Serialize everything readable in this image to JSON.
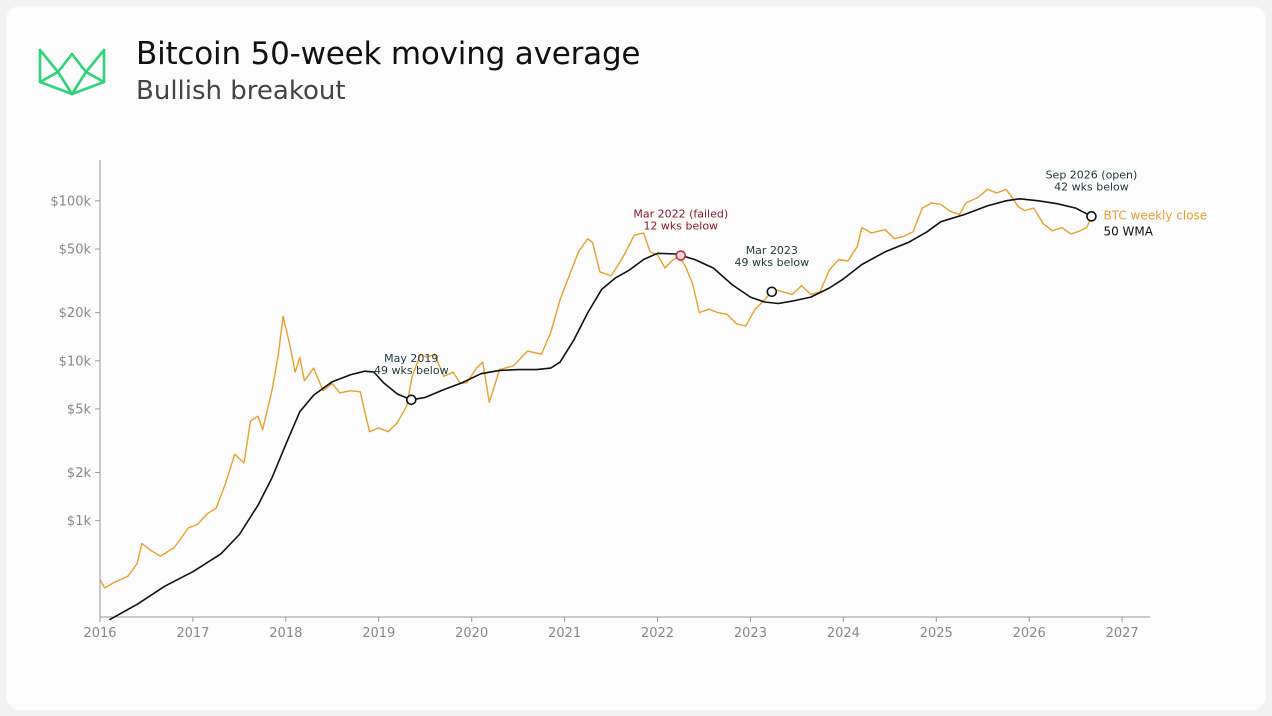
{
  "header": {
    "title": "Bitcoin 50-week moving average",
    "subtitle": "Bullish breakout"
  },
  "colors": {
    "btc": "#E8A02F",
    "wma": "#111111",
    "logo": "#2ED47A",
    "failed_marker": "#C0304A",
    "failed_text": "#8B1A2C",
    "note_text": "#1F3A3A",
    "axis": "#999999",
    "tick_text": "#888888"
  },
  "chart_data": {
    "type": "line",
    "yscale": "log",
    "xlim": [
      2016,
      2027.3
    ],
    "ylim": [
      250,
      180000
    ],
    "grid": false,
    "legend": "right-end",
    "x_ticks": [
      2016,
      2017,
      2018,
      2019,
      2020,
      2021,
      2022,
      2023,
      2024,
      2025,
      2026,
      2027
    ],
    "x_tick_labels": [
      "2016",
      "2017",
      "2018",
      "2019",
      "2020",
      "2021",
      "2022",
      "2023",
      "2024",
      "2025",
      "2026",
      "2027"
    ],
    "y_ticks": [
      1000,
      2000,
      5000,
      10000,
      20000,
      50000,
      100000
    ],
    "y_tick_labels": [
      "$1k",
      "$2k",
      "$5k",
      "$10k",
      "$20k",
      "$50k",
      "$100k"
    ],
    "series": [
      {
        "name": "BTC weekly close",
        "points": [
          [
            2016.0,
            430
          ],
          [
            2016.05,
            380
          ],
          [
            2016.15,
            410
          ],
          [
            2016.3,
            450
          ],
          [
            2016.4,
            540
          ],
          [
            2016.45,
            720
          ],
          [
            2016.55,
            650
          ],
          [
            2016.65,
            600
          ],
          [
            2016.8,
            680
          ],
          [
            2016.95,
            900
          ],
          [
            2017.05,
            950
          ],
          [
            2017.15,
            1100
          ],
          [
            2017.25,
            1200
          ],
          [
            2017.35,
            1700
          ],
          [
            2017.45,
            2600
          ],
          [
            2017.55,
            2300
          ],
          [
            2017.62,
            4200
          ],
          [
            2017.7,
            4500
          ],
          [
            2017.75,
            3700
          ],
          [
            2017.85,
            6500
          ],
          [
            2017.92,
            11000
          ],
          [
            2017.97,
            19000
          ],
          [
            2018.05,
            12000
          ],
          [
            2018.1,
            8500
          ],
          [
            2018.15,
            10500
          ],
          [
            2018.2,
            7500
          ],
          [
            2018.3,
            9000
          ],
          [
            2018.4,
            6500
          ],
          [
            2018.5,
            7200
          ],
          [
            2018.58,
            6300
          ],
          [
            2018.7,
            6500
          ],
          [
            2018.8,
            6400
          ],
          [
            2018.9,
            3600
          ],
          [
            2019.0,
            3800
          ],
          [
            2019.1,
            3600
          ],
          [
            2019.2,
            4100
          ],
          [
            2019.3,
            5200
          ],
          [
            2019.36,
            8000
          ],
          [
            2019.45,
            11000
          ],
          [
            2019.52,
            10500
          ],
          [
            2019.6,
            11000
          ],
          [
            2019.7,
            8000
          ],
          [
            2019.8,
            8500
          ],
          [
            2019.88,
            7200
          ],
          [
            2019.95,
            7300
          ],
          [
            2020.05,
            9000
          ],
          [
            2020.12,
            9800
          ],
          [
            2020.19,
            5500
          ],
          [
            2020.3,
            8800
          ],
          [
            2020.45,
            9300
          ],
          [
            2020.6,
            11500
          ],
          [
            2020.75,
            11000
          ],
          [
            2020.85,
            15000
          ],
          [
            2020.95,
            24000
          ],
          [
            2021.05,
            34000
          ],
          [
            2021.15,
            48000
          ],
          [
            2021.25,
            58000
          ],
          [
            2021.3,
            55000
          ],
          [
            2021.38,
            36000
          ],
          [
            2021.5,
            34000
          ],
          [
            2021.58,
            40000
          ],
          [
            2021.65,
            47000
          ],
          [
            2021.75,
            61000
          ],
          [
            2021.85,
            63000
          ],
          [
            2021.92,
            48000
          ],
          [
            2022.0,
            46000
          ],
          [
            2022.08,
            38000
          ],
          [
            2022.15,
            42000
          ],
          [
            2022.23,
            45000
          ],
          [
            2022.3,
            39000
          ],
          [
            2022.38,
            30000
          ],
          [
            2022.45,
            20000
          ],
          [
            2022.55,
            21000
          ],
          [
            2022.65,
            20000
          ],
          [
            2022.75,
            19500
          ],
          [
            2022.85,
            17000
          ],
          [
            2022.95,
            16500
          ],
          [
            2023.05,
            21000
          ],
          [
            2023.15,
            24000
          ],
          [
            2023.25,
            28000
          ],
          [
            2023.35,
            27000
          ],
          [
            2023.45,
            26000
          ],
          [
            2023.55,
            29500
          ],
          [
            2023.65,
            26000
          ],
          [
            2023.75,
            27000
          ],
          [
            2023.85,
            37000
          ],
          [
            2023.95,
            43000
          ],
          [
            2024.05,
            42000
          ],
          [
            2024.15,
            52000
          ],
          [
            2024.2,
            68000
          ],
          [
            2024.3,
            63000
          ],
          [
            2024.45,
            66000
          ],
          [
            2024.55,
            58000
          ],
          [
            2024.65,
            60000
          ],
          [
            2024.75,
            64000
          ],
          [
            2024.85,
            90000
          ],
          [
            2024.95,
            97000
          ],
          [
            2025.05,
            95000
          ],
          [
            2025.15,
            86000
          ],
          [
            2025.25,
            82000
          ],
          [
            2025.32,
            97000
          ],
          [
            2025.45,
            105000
          ],
          [
            2025.55,
            118000
          ],
          [
            2025.65,
            112000
          ],
          [
            2025.75,
            118000
          ],
          [
            2025.82,
            104000
          ],
          [
            2025.88,
            92000
          ],
          [
            2025.95,
            87000
          ],
          [
            2026.05,
            90000
          ],
          [
            2026.15,
            72000
          ],
          [
            2026.25,
            65000
          ],
          [
            2026.35,
            68000
          ],
          [
            2026.45,
            62000
          ],
          [
            2026.55,
            65000
          ],
          [
            2026.62,
            68000
          ],
          [
            2026.67,
            80000
          ]
        ]
      },
      {
        "name": "50 WMA",
        "points": [
          [
            2016.1,
            240
          ],
          [
            2016.4,
            300
          ],
          [
            2016.7,
            390
          ],
          [
            2017.0,
            480
          ],
          [
            2017.3,
            620
          ],
          [
            2017.5,
            820
          ],
          [
            2017.7,
            1250
          ],
          [
            2017.85,
            1850
          ],
          [
            2018.0,
            3000
          ],
          [
            2018.15,
            4800
          ],
          [
            2018.3,
            6100
          ],
          [
            2018.5,
            7400
          ],
          [
            2018.7,
            8200
          ],
          [
            2018.85,
            8600
          ],
          [
            2018.95,
            8500
          ],
          [
            2019.05,
            7300
          ],
          [
            2019.2,
            6200
          ],
          [
            2019.35,
            5700
          ],
          [
            2019.5,
            5900
          ],
          [
            2019.7,
            6600
          ],
          [
            2019.9,
            7300
          ],
          [
            2020.1,
            8300
          ],
          [
            2020.3,
            8700
          ],
          [
            2020.5,
            8800
          ],
          [
            2020.7,
            8800
          ],
          [
            2020.85,
            9000
          ],
          [
            2020.95,
            9800
          ],
          [
            2021.1,
            13500
          ],
          [
            2021.25,
            20000
          ],
          [
            2021.4,
            28000
          ],
          [
            2021.55,
            33000
          ],
          [
            2021.7,
            37000
          ],
          [
            2021.85,
            43000
          ],
          [
            2022.0,
            47000
          ],
          [
            2022.2,
            46500
          ],
          [
            2022.4,
            43000
          ],
          [
            2022.6,
            38000
          ],
          [
            2022.8,
            30000
          ],
          [
            2023.0,
            25000
          ],
          [
            2023.15,
            23300
          ],
          [
            2023.3,
            22800
          ],
          [
            2023.45,
            23600
          ],
          [
            2023.65,
            25000
          ],
          [
            2023.85,
            28500
          ],
          [
            2024.0,
            32500
          ],
          [
            2024.2,
            40000
          ],
          [
            2024.45,
            48000
          ],
          [
            2024.7,
            55000
          ],
          [
            2024.9,
            64000
          ],
          [
            2025.05,
            74000
          ],
          [
            2025.3,
            82000
          ],
          [
            2025.55,
            93000
          ],
          [
            2025.75,
            100000
          ],
          [
            2025.9,
            103000
          ],
          [
            2026.1,
            100000
          ],
          [
            2026.3,
            96000
          ],
          [
            2026.5,
            90000
          ],
          [
            2026.67,
            80000
          ]
        ]
      }
    ],
    "annotations": [
      {
        "text": [
          "May 2019",
          "49 wks below"
        ],
        "x": 2019.35,
        "y": 5700,
        "kind": "note"
      },
      {
        "text": [
          "Mar 2022 (failed)",
          "12 wks below"
        ],
        "x": 2022.25,
        "y": 45500,
        "kind": "failed"
      },
      {
        "text": [
          "Mar 2023",
          "49 wks below"
        ],
        "x": 2023.23,
        "y": 27000,
        "kind": "note"
      },
      {
        "text": [
          "Sep 2026 (open)",
          "42 wks below"
        ],
        "x": 2026.67,
        "y": 80000,
        "kind": "note"
      }
    ]
  }
}
